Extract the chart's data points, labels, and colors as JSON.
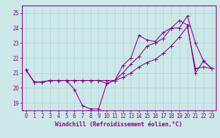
{
  "xlabel": "Windchill (Refroidissement éolien,°C)",
  "bg_color": "#cce8e8",
  "grid_color": "#aacccc",
  "line_color": "#880088",
  "xlim": [
    -0.5,
    23.5
  ],
  "ylim": [
    18.5,
    25.5
  ],
  "yticks": [
    19,
    20,
    21,
    22,
    23,
    24,
    25
  ],
  "xticks": [
    0,
    1,
    2,
    3,
    4,
    5,
    6,
    7,
    8,
    9,
    10,
    11,
    12,
    13,
    14,
    15,
    16,
    17,
    18,
    19,
    20,
    21,
    22,
    23
  ],
  "line1_x": [
    0,
    1,
    2,
    3,
    4,
    5,
    6,
    7,
    8,
    9,
    10,
    11,
    12,
    13,
    14,
    15,
    16,
    17,
    18,
    19,
    20,
    21,
    22,
    23
  ],
  "line1_y": [
    21.2,
    20.4,
    20.4,
    20.5,
    20.5,
    20.5,
    19.9,
    18.8,
    18.6,
    18.6,
    20.3,
    20.5,
    21.0,
    21.6,
    22.1,
    22.8,
    23.0,
    23.3,
    24.0,
    24.0,
    24.8,
    23.0,
    21.8,
    21.3
  ],
  "line2_x": [
    0,
    1,
    2,
    3,
    4,
    5,
    6,
    7,
    8,
    9,
    10,
    11,
    12,
    13,
    14,
    15,
    16,
    17,
    18,
    19,
    20,
    21,
    22,
    23
  ],
  "line2_y": [
    21.2,
    20.4,
    20.4,
    20.5,
    20.5,
    20.5,
    20.5,
    20.5,
    20.5,
    20.5,
    20.3,
    20.5,
    21.5,
    22.0,
    23.5,
    23.2,
    23.1,
    23.7,
    24.0,
    24.5,
    24.2,
    21.0,
    21.8,
    21.3
  ],
  "line3_x": [
    0,
    1,
    2,
    3,
    4,
    5,
    6,
    7,
    8,
    9,
    10,
    11,
    12,
    13,
    14,
    15,
    16,
    17,
    18,
    19,
    20,
    21,
    22,
    23
  ],
  "line3_y": [
    21.2,
    20.4,
    20.4,
    20.5,
    20.5,
    20.5,
    20.5,
    20.5,
    20.5,
    20.5,
    20.5,
    20.5,
    20.7,
    21.0,
    21.4,
    21.7,
    21.9,
    22.3,
    22.8,
    23.4,
    24.1,
    21.3,
    21.4,
    21.3
  ],
  "tick_fontsize": 5.5,
  "xlabel_fontsize": 6.0,
  "spine_linewidth": 0.8,
  "grid_linewidth": 0.4,
  "line_linewidth": 0.8,
  "marker_size": 2.0
}
